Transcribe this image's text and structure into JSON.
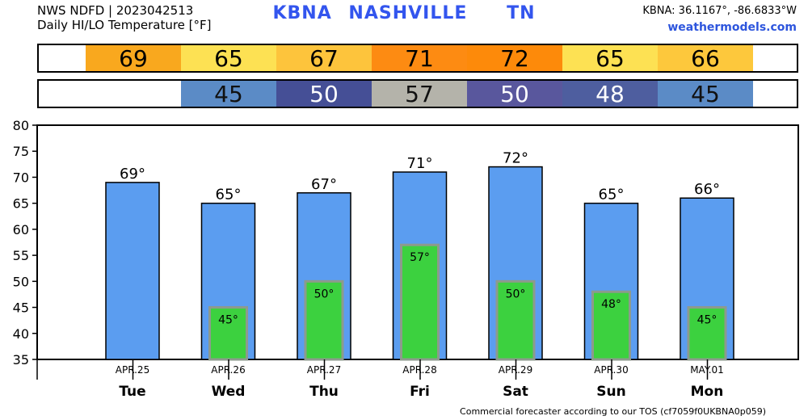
{
  "header": {
    "line1": "NWS NDFD | 2023042513",
    "line2": "Daily HI/LO Temperature [°F]",
    "station": "KBNA",
    "city": "NASHVILLE",
    "state": "TN",
    "coords": "KBNA: 36.1167°, -86.6833°W",
    "site": "weathermodels.com"
  },
  "strips": {
    "hi": [
      {
        "value": "69",
        "color": "#f9a81e"
      },
      {
        "value": "65",
        "color": "#fde153"
      },
      {
        "value": "67",
        "color": "#fdc43c"
      },
      {
        "value": "71",
        "color": "#fd8b12"
      },
      {
        "value": "72",
        "color": "#fd8a0a"
      },
      {
        "value": "65",
        "color": "#fde153"
      },
      {
        "value": "66",
        "color": "#fdc83c"
      }
    ],
    "lo": [
      {
        "value": "45",
        "color": "#5b8bc6",
        "text": "#111111"
      },
      {
        "value": "50",
        "color": "#454f96",
        "text": "#ffffff"
      },
      {
        "value": "57",
        "color": "#b4b3aa",
        "text": "#111111"
      },
      {
        "value": "50",
        "color": "#59579d",
        "text": "#ffffff"
      },
      {
        "value": "48",
        "color": "#4e5e9f",
        "text": "#ffffff"
      },
      {
        "value": "45",
        "color": "#5b8bc6",
        "text": "#111111"
      }
    ]
  },
  "chart_data": {
    "type": "bar",
    "categories": [
      "Tue",
      "Wed",
      "Thu",
      "Fri",
      "Sat",
      "Sun",
      "Mon"
    ],
    "dates": [
      "APR.25",
      "APR.26",
      "APR.27",
      "APR.28",
      "APR.29",
      "APR.30",
      "MAY.01"
    ],
    "series": [
      {
        "values": [
          69,
          65,
          67,
          71,
          72,
          65,
          66
        ],
        "labels": [
          "69°",
          "65°",
          "67°",
          "71°",
          "72°",
          "65°",
          "66°"
        ],
        "color": "#5b9df0"
      },
      {
        "values": [
          null,
          45,
          50,
          57,
          50,
          48,
          45
        ],
        "labels": [
          "",
          "45°",
          "50°",
          "57°",
          "50°",
          "48°",
          "45°"
        ],
        "color": "#3cd13f"
      }
    ],
    "ylim": [
      35,
      80
    ],
    "yticks": [
      "35",
      "40",
      "45",
      "50",
      "55",
      "60",
      "65",
      "70",
      "75",
      "80"
    ],
    "grid": false,
    "legend": "none"
  },
  "footer": "Commercial forecaster according to our TOS (cf7059f0UKBNA0p059)"
}
